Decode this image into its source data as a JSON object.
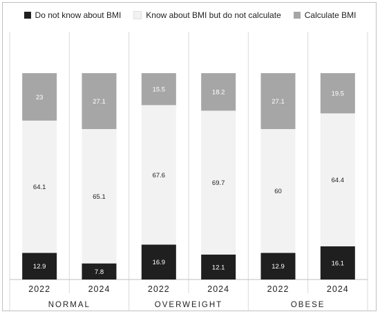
{
  "chart_data": {
    "type": "bar",
    "stacked": true,
    "normalized": true,
    "groups": [
      "NORMAL",
      "OVERWEIGHT",
      "OBESE"
    ],
    "categories": [
      "2022",
      "2024",
      "2022",
      "2024",
      "2022",
      "2024"
    ],
    "category_groups": [
      0,
      0,
      1,
      1,
      2,
      2
    ],
    "series": [
      {
        "name": "Do not know about BMI",
        "color": "#1f1f1f",
        "label_color": "#ffffff",
        "values": [
          12.9,
          7.8,
          16.9,
          12.1,
          12.9,
          16.1
        ]
      },
      {
        "name": "Know about BMI but do not calculate",
        "color": "#f2f2f2",
        "label_color": "#222222",
        "values": [
          64.1,
          65.1,
          67.6,
          69.7,
          60,
          64.4
        ]
      },
      {
        "name": "Calculate BMI",
        "color": "#a6a6a6",
        "label_color": "#ffffff",
        "values": [
          23,
          27.1,
          15.5,
          18.2,
          27.1,
          19.5
        ]
      }
    ],
    "legend_position": "top",
    "ylim": [
      0,
      100
    ],
    "grid": false
  }
}
